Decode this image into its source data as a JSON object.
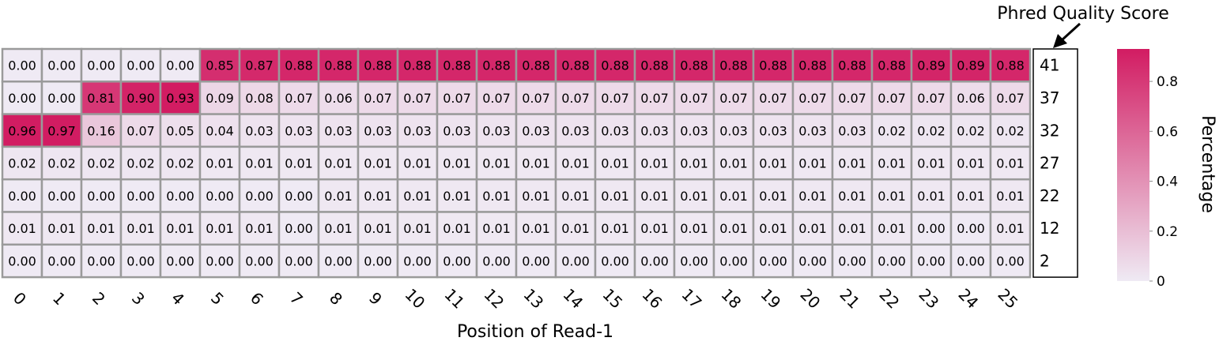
{
  "chart_data": {
    "type": "heatmap",
    "x_categories": [
      "0",
      "1",
      "2",
      "3",
      "4",
      "5",
      "6",
      "7",
      "8",
      "9",
      "10",
      "11",
      "12",
      "13",
      "14",
      "15",
      "16",
      "17",
      "18",
      "19",
      "20",
      "21",
      "22",
      "23",
      "24",
      "25"
    ],
    "y_categories": [
      "41",
      "37",
      "32",
      "27",
      "22",
      "12",
      "2"
    ],
    "values": [
      [
        0.0,
        0.0,
        0.0,
        0.0,
        0.0,
        0.85,
        0.87,
        0.88,
        0.88,
        0.88,
        0.88,
        0.88,
        0.88,
        0.88,
        0.88,
        0.88,
        0.88,
        0.88,
        0.88,
        0.88,
        0.88,
        0.88,
        0.88,
        0.89,
        0.89,
        0.88
      ],
      [
        0.0,
        0.0,
        0.81,
        0.9,
        0.93,
        0.09,
        0.08,
        0.07,
        0.06,
        0.07,
        0.07,
        0.07,
        0.07,
        0.07,
        0.07,
        0.07,
        0.07,
        0.07,
        0.07,
        0.07,
        0.07,
        0.07,
        0.07,
        0.07,
        0.06,
        0.07
      ],
      [
        0.96,
        0.97,
        0.16,
        0.07,
        0.05,
        0.04,
        0.03,
        0.03,
        0.03,
        0.03,
        0.03,
        0.03,
        0.03,
        0.03,
        0.03,
        0.03,
        0.03,
        0.03,
        0.03,
        0.03,
        0.03,
        0.03,
        0.02,
        0.02,
        0.02,
        0.02
      ],
      [
        0.02,
        0.02,
        0.02,
        0.02,
        0.02,
        0.01,
        0.01,
        0.01,
        0.01,
        0.01,
        0.01,
        0.01,
        0.01,
        0.01,
        0.01,
        0.01,
        0.01,
        0.01,
        0.01,
        0.01,
        0.01,
        0.01,
        0.01,
        0.01,
        0.01,
        0.01
      ],
      [
        0.0,
        0.0,
        0.0,
        0.0,
        0.0,
        0.0,
        0.0,
        0.0,
        0.01,
        0.01,
        0.01,
        0.01,
        0.01,
        0.01,
        0.01,
        0.01,
        0.01,
        0.01,
        0.01,
        0.01,
        0.01,
        0.01,
        0.01,
        0.01,
        0.01,
        0.01
      ],
      [
        0.01,
        0.01,
        0.01,
        0.01,
        0.01,
        0.01,
        0.01,
        0.0,
        0.01,
        0.01,
        0.01,
        0.01,
        0.01,
        0.01,
        0.01,
        0.01,
        0.01,
        0.01,
        0.01,
        0.01,
        0.01,
        0.01,
        0.01,
        0.0,
        0.0,
        0.01
      ],
      [
        0.0,
        0.0,
        0.0,
        0.0,
        0.0,
        0.0,
        0.0,
        0.0,
        0.0,
        0.0,
        0.0,
        0.0,
        0.0,
        0.0,
        0.0,
        0.0,
        0.0,
        0.0,
        0.0,
        0.0,
        0.0,
        0.0,
        0.0,
        0.0,
        0.0,
        0.0
      ]
    ],
    "value_format": "0.00",
    "xlabel": "Position of Read-1",
    "annotation": "Phred Quality Score",
    "colorbar": {
      "label": "Percentage",
      "ticks": [
        "0",
        "0.2",
        "0.4",
        "0.6",
        "0.8"
      ],
      "range": [
        0,
        0.93
      ],
      "low_color": "#efeaf4",
      "high_color": "#d21c62"
    },
    "colors": {
      "cell_border": "#9a9a9a",
      "label_box_border": "#000000",
      "text": "#000000"
    }
  }
}
